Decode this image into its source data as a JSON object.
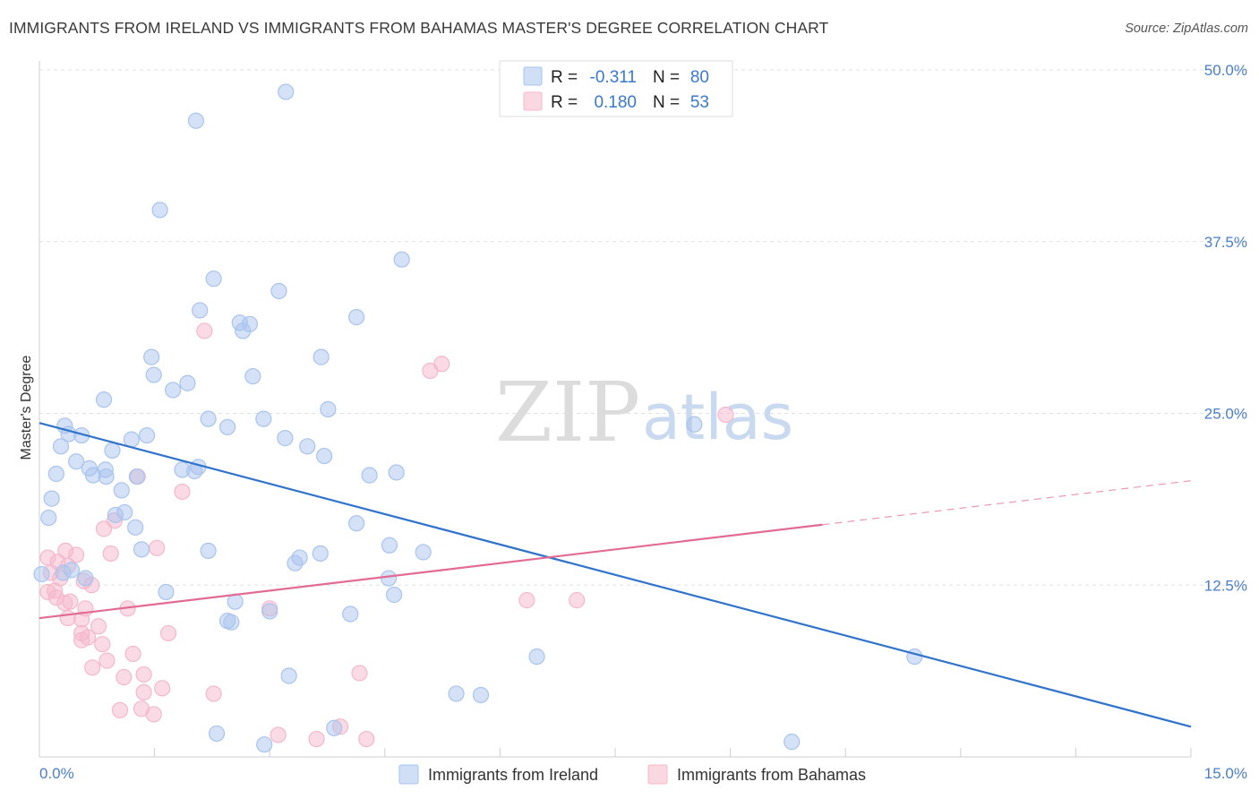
{
  "header": {
    "title": "IMMIGRANTS FROM IRELAND VS IMMIGRANTS FROM BAHAMAS MASTER'S DEGREE CORRELATION CHART",
    "source": "Source: ZipAtlas.com"
  },
  "watermark": {
    "zip": "ZIP",
    "atlas": "atlas"
  },
  "stats_box": {
    "rows": [
      {
        "r_label": "R =",
        "r_value": "-0.311",
        "n_label": "N =",
        "n_value": "80",
        "color": "#a9c4ee"
      },
      {
        "r_label": "R =",
        "r_value": "0.180",
        "n_label": "N =",
        "n_value": "53",
        "color": "#f5b8cb"
      }
    ]
  },
  "legend": {
    "items": [
      {
        "label": "Immigrants from Ireland",
        "color": "#a9c4ee"
      },
      {
        "label": "Immigrants from Bahamas",
        "color": "#f5b8cb"
      }
    ]
  },
  "chart_data": {
    "type": "scatter",
    "title": "IMMIGRANTS FROM IRELAND VS IMMIGRANTS FROM BAHAMAS MASTER'S DEGREE CORRELATION CHART",
    "xlabel": "",
    "ylabel": "Master's Degree",
    "xlim": [
      0,
      15
    ],
    "ylim": [
      0,
      50
    ],
    "x_tick_labels": [
      "0.0%",
      "15.0%"
    ],
    "y_ticks": [
      12.5,
      25.0,
      37.5,
      50.0
    ],
    "y_tick_labels": [
      "12.5%",
      "25.0%",
      "37.5%",
      "50.0%"
    ],
    "grid": true,
    "legend_position": "bottom",
    "series": [
      {
        "name": "Immigrants from Ireland",
        "color": "#a9c4ee",
        "line_color": "#2f73cc",
        "trend": {
          "x0": 0,
          "y0": 24.3,
          "x1": 15,
          "y1": 2.2
        },
        "points": [
          [
            3.21,
            48.4
          ],
          [
            2.04,
            46.3
          ],
          [
            1.57,
            39.8
          ],
          [
            4.72,
            36.2
          ],
          [
            2.27,
            34.8
          ],
          [
            3.12,
            33.9
          ],
          [
            2.09,
            32.5
          ],
          [
            4.13,
            32.0
          ],
          [
            2.61,
            31.6
          ],
          [
            2.74,
            31.5
          ],
          [
            2.65,
            31.0
          ],
          [
            1.46,
            29.1
          ],
          [
            3.67,
            29.1
          ],
          [
            1.49,
            27.8
          ],
          [
            2.78,
            27.7
          ],
          [
            1.93,
            27.2
          ],
          [
            1.74,
            26.7
          ],
          [
            0.84,
            26.0
          ],
          [
            3.76,
            25.3
          ],
          [
            2.2,
            24.6
          ],
          [
            2.92,
            24.6
          ],
          [
            8.53,
            24.2
          ],
          [
            0.33,
            24.1
          ],
          [
            2.45,
            24.0
          ],
          [
            0.38,
            23.5
          ],
          [
            0.55,
            23.4
          ],
          [
            1.4,
            23.4
          ],
          [
            1.2,
            23.1
          ],
          [
            3.2,
            23.2
          ],
          [
            0.28,
            22.6
          ],
          [
            0.95,
            22.3
          ],
          [
            3.49,
            22.6
          ],
          [
            0.48,
            21.5
          ],
          [
            0.65,
            21.0
          ],
          [
            3.71,
            21.9
          ],
          [
            0.86,
            20.9
          ],
          [
            2.07,
            21.1
          ],
          [
            0.22,
            20.6
          ],
          [
            1.86,
            20.9
          ],
          [
            2.02,
            20.8
          ],
          [
            0.7,
            20.5
          ],
          [
            1.27,
            20.4
          ],
          [
            4.65,
            20.7
          ],
          [
            4.3,
            20.5
          ],
          [
            0.87,
            20.4
          ],
          [
            1.07,
            19.4
          ],
          [
            0.16,
            18.8
          ],
          [
            0.12,
            17.4
          ],
          [
            1.11,
            17.8
          ],
          [
            0.99,
            17.6
          ],
          [
            4.13,
            17.0
          ],
          [
            1.25,
            16.7
          ],
          [
            4.56,
            15.4
          ],
          [
            1.33,
            15.1
          ],
          [
            2.2,
            15.0
          ],
          [
            3.66,
            14.8
          ],
          [
            5.0,
            14.9
          ],
          [
            3.39,
            14.5
          ],
          [
            3.33,
            14.1
          ],
          [
            0.03,
            13.3
          ],
          [
            4.55,
            13.0
          ],
          [
            1.65,
            12.0
          ],
          [
            4.62,
            11.8
          ],
          [
            2.55,
            11.3
          ],
          [
            3.0,
            10.6
          ],
          [
            4.05,
            10.4
          ],
          [
            2.45,
            9.9
          ],
          [
            2.5,
            9.8
          ],
          [
            6.48,
            7.3
          ],
          [
            11.4,
            7.3
          ],
          [
            3.25,
            5.9
          ],
          [
            5.43,
            4.6
          ],
          [
            5.75,
            4.5
          ],
          [
            2.31,
            1.7
          ],
          [
            3.84,
            2.1
          ],
          [
            9.8,
            1.1
          ],
          [
            2.93,
            0.9
          ],
          [
            0.42,
            13.6
          ],
          [
            0.31,
            13.4
          ],
          [
            0.6,
            13.0
          ]
        ]
      },
      {
        "name": "Immigrants from Bahamas",
        "color": "#f5b8cb",
        "line_color": "#e26b93",
        "trend": {
          "x0": 0,
          "y0": 10.1,
          "x1": 10.2,
          "y1": 16.9
        },
        "trend_dashed": {
          "x0": 10.2,
          "y0": 16.9,
          "x1": 15,
          "y1": 20.1
        },
        "points": [
          [
            2.15,
            31.0
          ],
          [
            5.09,
            28.1
          ],
          [
            5.24,
            28.6
          ],
          [
            8.94,
            24.9
          ],
          [
            1.28,
            20.4
          ],
          [
            1.86,
            19.3
          ],
          [
            0.84,
            16.6
          ],
          [
            0.98,
            17.2
          ],
          [
            1.53,
            15.2
          ],
          [
            0.34,
            15.0
          ],
          [
            0.48,
            14.7
          ],
          [
            0.93,
            14.8
          ],
          [
            0.11,
            14.5
          ],
          [
            0.24,
            14.2
          ],
          [
            0.37,
            13.9
          ],
          [
            0.15,
            13.4
          ],
          [
            0.27,
            13.0
          ],
          [
            0.58,
            12.8
          ],
          [
            0.2,
            12.1
          ],
          [
            0.11,
            12.0
          ],
          [
            0.68,
            12.5
          ],
          [
            0.22,
            11.6
          ],
          [
            0.4,
            11.3
          ],
          [
            0.33,
            11.2
          ],
          [
            0.6,
            10.8
          ],
          [
            6.35,
            11.4
          ],
          [
            7.0,
            11.4
          ],
          [
            3.0,
            10.8
          ],
          [
            1.15,
            10.8
          ],
          [
            0.37,
            10.1
          ],
          [
            0.55,
            10.0
          ],
          [
            0.77,
            9.5
          ],
          [
            0.55,
            9.0
          ],
          [
            1.68,
            9.0
          ],
          [
            0.63,
            8.7
          ],
          [
            0.55,
            8.5
          ],
          [
            0.82,
            8.2
          ],
          [
            1.22,
            7.5
          ],
          [
            0.88,
            7.0
          ],
          [
            0.69,
            6.5
          ],
          [
            1.1,
            5.8
          ],
          [
            1.36,
            6.0
          ],
          [
            1.36,
            4.7
          ],
          [
            4.17,
            6.1
          ],
          [
            1.6,
            5.0
          ],
          [
            2.27,
            4.6
          ],
          [
            1.05,
            3.4
          ],
          [
            1.33,
            3.5
          ],
          [
            3.92,
            2.2
          ],
          [
            1.49,
            3.1
          ],
          [
            3.11,
            1.6
          ],
          [
            3.61,
            1.3
          ],
          [
            4.26,
            1.3
          ]
        ]
      }
    ]
  }
}
